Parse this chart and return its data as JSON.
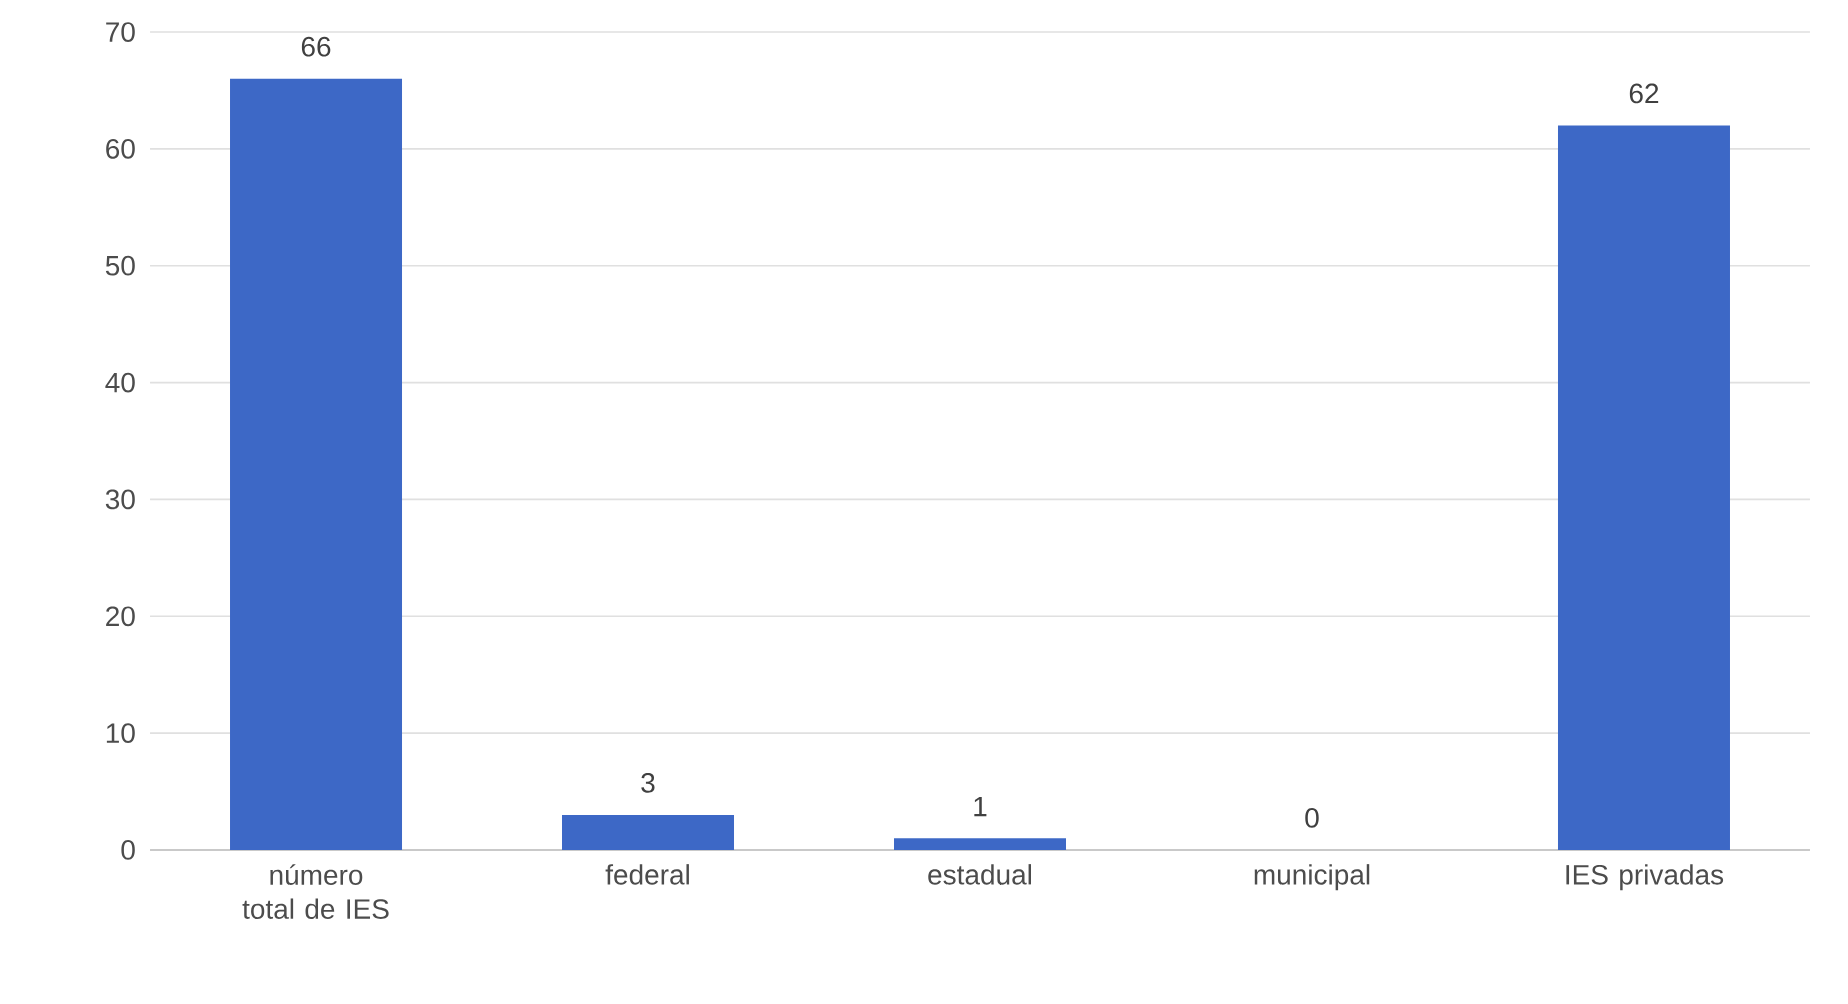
{
  "chart_data": {
    "type": "bar",
    "categories": [
      "número total de IES",
      "federal",
      "estadual",
      "municipal",
      "IES privadas"
    ],
    "values": [
      66,
      3,
      1,
      0,
      62
    ],
    "color": "#3d68c6",
    "ylim": [
      0,
      70
    ],
    "yticks": [
      0,
      10,
      20,
      30,
      40,
      50,
      60,
      70
    ],
    "grid": "y",
    "data_labels": true
  }
}
